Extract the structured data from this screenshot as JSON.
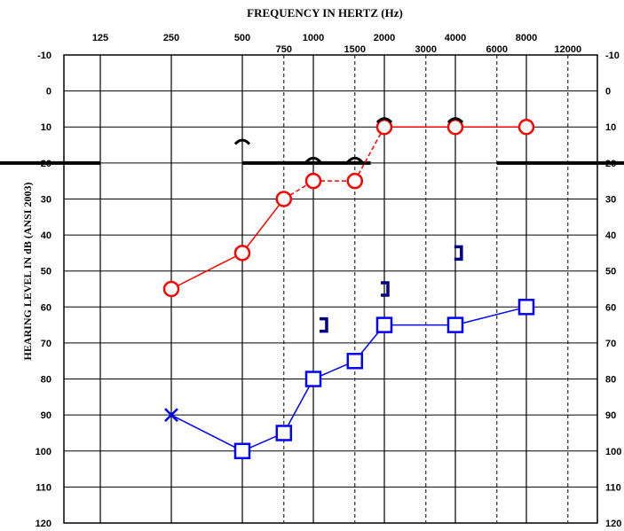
{
  "chart_data": {
    "type": "scatter",
    "title": "FREQUENCY IN HERTZ (Hz)",
    "ylabel": "HEARING LEVEL IN dB (ANSI 2003)",
    "xscale": "log",
    "yinverted": true,
    "ylim": [
      -10,
      120
    ],
    "yticks": [
      -10,
      0,
      10,
      20,
      30,
      40,
      50,
      60,
      70,
      80,
      90,
      100,
      110,
      120
    ],
    "xticks_major": [
      {
        "value": 125,
        "label": "125"
      },
      {
        "value": 250,
        "label": "250"
      },
      {
        "value": 500,
        "label": "500"
      },
      {
        "value": 1000,
        "label": "1000"
      },
      {
        "value": 2000,
        "label": "2000"
      },
      {
        "value": 4000,
        "label": "4000"
      },
      {
        "value": 8000,
        "label": "8000"
      }
    ],
    "xticks_minor": [
      {
        "value": 750,
        "label": "750"
      },
      {
        "value": 1500,
        "label": "1500"
      },
      {
        "value": 3000,
        "label": "3000"
      },
      {
        "value": 6000,
        "label": "6000"
      },
      {
        "value": 12000,
        "label": "12000"
      }
    ],
    "reference_line_db": 20,
    "reference_segments": [
      [
        80,
        125
      ],
      [
        500,
        1750
      ],
      [
        6000,
        15000
      ]
    ],
    "series": [
      {
        "color": "#ff0000",
        "marker": "circle",
        "points": [
          {
            "x": 250,
            "y": 55
          },
          {
            "x": 500,
            "y": 45
          },
          {
            "x": 750,
            "y": 30
          },
          {
            "x": 1000,
            "y": 25
          },
          {
            "x": 1500,
            "y": 25
          },
          {
            "x": 2000,
            "y": 10
          },
          {
            "x": 4000,
            "y": 10
          },
          {
            "x": 8000,
            "y": 10
          }
        ],
        "dashed_segments": [
          [
            2,
            3
          ],
          [
            3,
            4
          ],
          [
            4,
            5
          ]
        ]
      },
      {
        "color": "#0000ff",
        "marker": "square",
        "points": [
          {
            "x": 250,
            "y": 90,
            "marker": "x"
          },
          {
            "x": 500,
            "y": 100
          },
          {
            "x": 750,
            "y": 95
          },
          {
            "x": 1000,
            "y": 80
          },
          {
            "x": 1500,
            "y": 75
          },
          {
            "x": 2000,
            "y": 65
          },
          {
            "x": 4000,
            "y": 65
          },
          {
            "x": 8000,
            "y": 60
          }
        ]
      },
      {
        "color": "#000080",
        "marker": "bracket-right",
        "points": [
          {
            "x": 1100,
            "y": 65
          },
          {
            "x": 2000,
            "y": 55
          },
          {
            "x": 4100,
            "y": 45
          }
        ]
      },
      {
        "color": "#000000",
        "marker": "caret",
        "points": [
          {
            "x": 500,
            "y": 14
          },
          {
            "x": 1000,
            "y": 19
          },
          {
            "x": 1500,
            "y": 19
          },
          {
            "x": 2000,
            "y": 8
          },
          {
            "x": 4000,
            "y": 8
          }
        ]
      }
    ]
  }
}
